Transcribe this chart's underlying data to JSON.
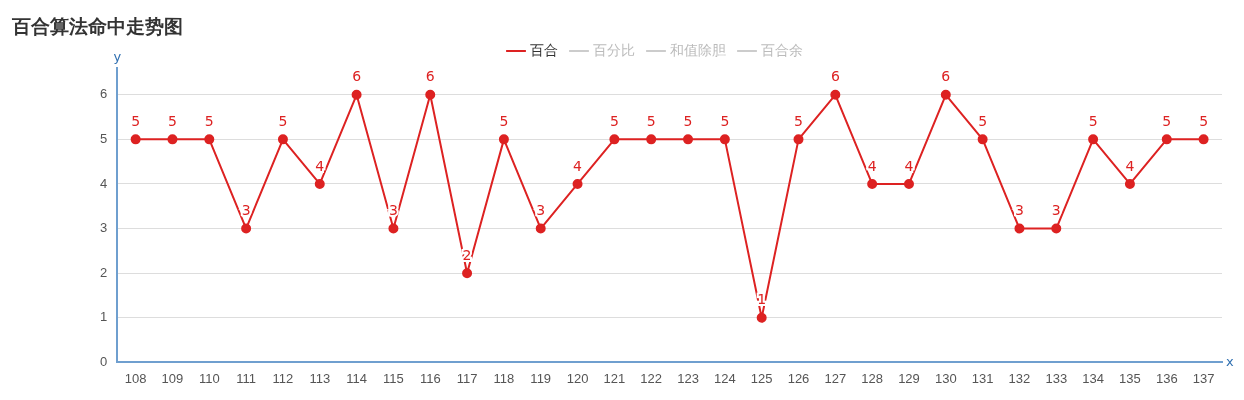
{
  "chart_data": {
    "type": "line",
    "title": "百合算法命中走势图",
    "xlabel": "x",
    "ylabel": "y",
    "categories": [
      "108",
      "109",
      "110",
      "111",
      "112",
      "113",
      "114",
      "115",
      "116",
      "117",
      "118",
      "119",
      "120",
      "121",
      "122",
      "123",
      "124",
      "125",
      "126",
      "127",
      "128",
      "129",
      "130",
      "131",
      "132",
      "133",
      "134",
      "135",
      "136",
      "137"
    ],
    "series": [
      {
        "name": "百合",
        "color": "#dd2222",
        "values": [
          5,
          5,
          5,
          3,
          5,
          4,
          6,
          3,
          6,
          2,
          5,
          3,
          4,
          5,
          5,
          5,
          5,
          1,
          5,
          6,
          4,
          4,
          6,
          5,
          3,
          3,
          5,
          4,
          5,
          5
        ]
      },
      {
        "name": "百分比",
        "color": "#cccccc",
        "values": [
          null,
          null,
          null,
          null,
          null,
          null,
          null,
          null,
          null,
          null,
          null,
          null,
          null,
          null,
          null,
          null,
          null,
          null,
          null,
          null,
          null,
          null,
          null,
          null,
          null,
          null,
          null,
          null,
          null,
          null
        ]
      },
      {
        "name": "和值除胆",
        "color": "#cccccc",
        "values": [
          null,
          null,
          null,
          null,
          null,
          null,
          null,
          null,
          null,
          null,
          null,
          null,
          null,
          null,
          null,
          null,
          null,
          null,
          null,
          null,
          null,
          null,
          null,
          null,
          null,
          null,
          null,
          null,
          null,
          null
        ]
      },
      {
        "name": "百合余",
        "color": "#cccccc",
        "values": [
          null,
          null,
          null,
          null,
          null,
          null,
          null,
          null,
          null,
          null,
          null,
          null,
          null,
          null,
          null,
          null,
          null,
          null,
          null,
          null,
          null,
          null,
          null,
          null,
          null,
          null,
          null,
          null,
          null,
          null
        ]
      }
    ],
    "ylim": [
      0,
      6.6
    ],
    "yticks": [
      0,
      1,
      2,
      3,
      4,
      5,
      6
    ],
    "grid": "y",
    "legend": "top",
    "marker": "circle",
    "line_style": "solid",
    "data_labels": true
  }
}
